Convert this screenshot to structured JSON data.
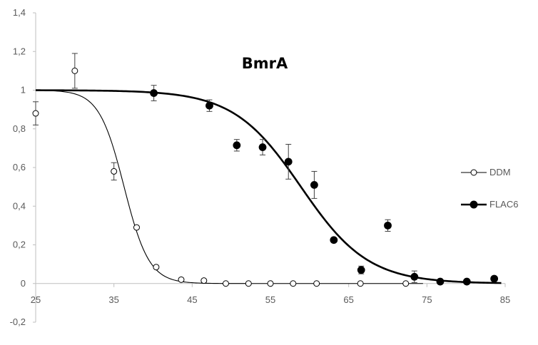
{
  "chart_data": {
    "type": "scatter",
    "title": "BmrA",
    "xlabel": "",
    "ylabel": "",
    "xlim": [
      25,
      85
    ],
    "ylim": [
      -0.2,
      1.4
    ],
    "x_ticks": [
      "25",
      "35",
      "45",
      "55",
      "65",
      "75",
      "85"
    ],
    "y_ticks": [
      "-0,2",
      "0",
      "0,2",
      "0,4",
      "0,6",
      "0,8",
      "1",
      "1,2",
      "1,4"
    ],
    "grid": false,
    "legend_position": "right",
    "series": [
      {
        "name": "DDM",
        "marker": "open-circle",
        "line_weight": "thin",
        "points": [
          {
            "x": 25.0,
            "y": 0.88,
            "err": 0.06
          },
          {
            "x": 30.0,
            "y": 1.1,
            "err": 0.09
          },
          {
            "x": 35.0,
            "y": 0.58,
            "err": 0.045
          },
          {
            "x": 37.9,
            "y": 0.29,
            "err": 0.0
          },
          {
            "x": 40.4,
            "y": 0.085,
            "err": 0.0
          },
          {
            "x": 43.6,
            "y": 0.02,
            "err": 0.0
          },
          {
            "x": 46.5,
            "y": 0.015,
            "err": 0.0
          },
          {
            "x": 49.3,
            "y": 0.0,
            "err": 0.0
          },
          {
            "x": 52.2,
            "y": 0.0,
            "err": 0.0
          },
          {
            "x": 55.0,
            "y": 0.0,
            "err": 0.0
          },
          {
            "x": 57.9,
            "y": 0.0,
            "err": 0.0
          },
          {
            "x": 60.9,
            "y": 0.0,
            "err": 0.0
          },
          {
            "x": 66.5,
            "y": 0.0,
            "err": 0.0
          },
          {
            "x": 72.3,
            "y": 0.0,
            "err": 0.0
          }
        ],
        "fit": {
          "model": "sigmoid",
          "top": 1.0,
          "bottom": 0.0,
          "midpoint": 36.3,
          "slope": 1.6,
          "x_range": [
            25,
            74.7
          ]
        }
      },
      {
        "name": "FLAC6",
        "marker": "filled-circle",
        "line_weight": "thick",
        "points": [
          {
            "x": 40.1,
            "y": 0.985,
            "err": 0.04
          },
          {
            "x": 47.2,
            "y": 0.92,
            "err": 0.03
          },
          {
            "x": 50.7,
            "y": 0.715,
            "err": 0.03
          },
          {
            "x": 54.0,
            "y": 0.705,
            "err": 0.04
          },
          {
            "x": 57.3,
            "y": 0.63,
            "err": 0.09
          },
          {
            "x": 60.6,
            "y": 0.51,
            "err": 0.07
          },
          {
            "x": 63.1,
            "y": 0.225,
            "err": 0.0
          },
          {
            "x": 66.6,
            "y": 0.07,
            "err": 0.02
          },
          {
            "x": 70.0,
            "y": 0.3,
            "err": 0.03
          },
          {
            "x": 73.4,
            "y": 0.035,
            "err": 0.03
          },
          {
            "x": 76.7,
            "y": 0.01,
            "err": 0.0
          },
          {
            "x": 80.1,
            "y": 0.01,
            "err": 0.0
          },
          {
            "x": 83.6,
            "y": 0.025,
            "err": 0.0
          }
        ],
        "fit": {
          "model": "sigmoid",
          "top": 1.0,
          "bottom": 0.0,
          "midpoint": 58.9,
          "slope": 4.3,
          "x_range": [
            25,
            84.6
          ]
        }
      }
    ]
  }
}
